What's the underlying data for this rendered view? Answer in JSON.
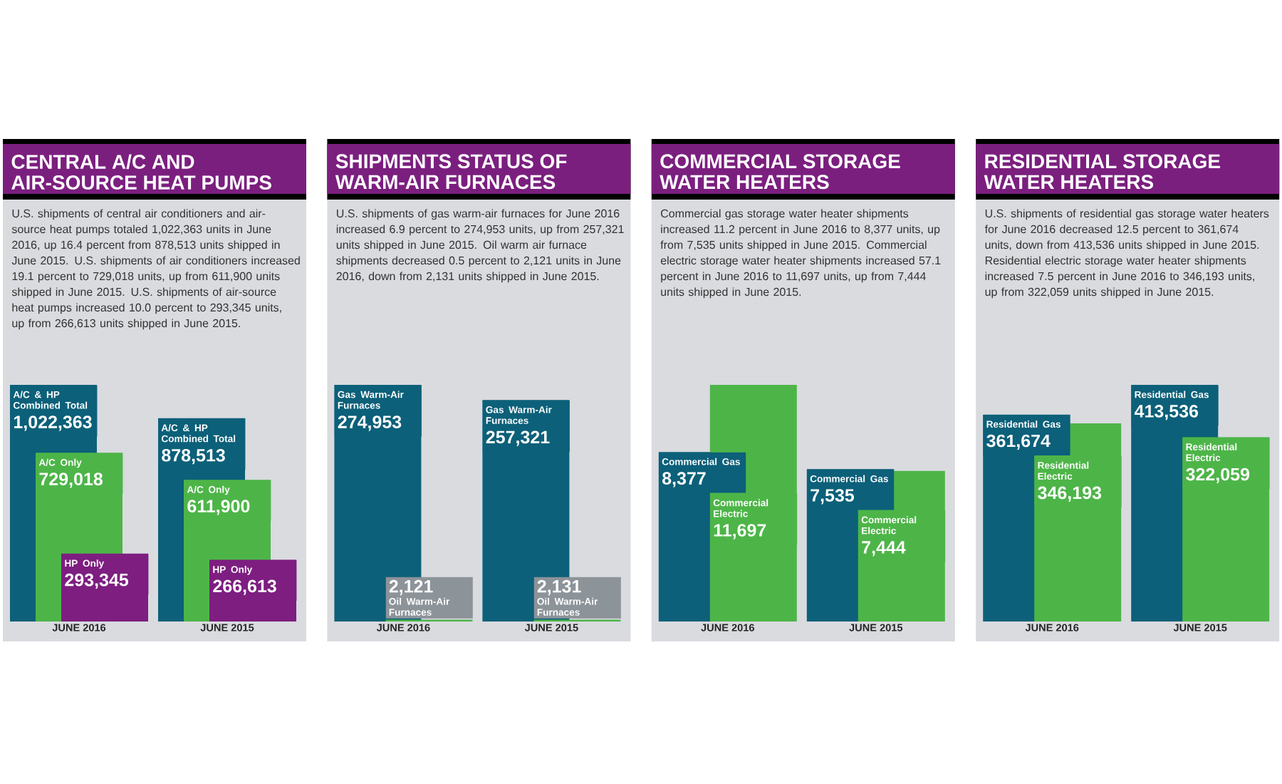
{
  "chart_data": [
    {
      "type": "bar",
      "title": "CENTRAL A/C AND AIR-SOURCE HEAT PUMPS",
      "subtitle": "U.S. shipments of central air conditioners and air-source heat pumps totaled 1,022,363 units in June 2016, up 16.4 percent from 878,513 units shipped in June 2015. U.S. shipments of air conditioners increased 19.1 percent to 729,018 units, up from 611,900 units shipped in June 2015. U.S. shipments of air-source heat pumps increased 10.0 percent to 293,345 units, up from 266,613 units shipped in June 2015.",
      "categories": [
        "JUNE 2016",
        "JUNE 2015"
      ],
      "series": [
        {
          "name": "A/C & HP Combined Total",
          "color": "#0c6079",
          "values": [
            1022363,
            878513
          ],
          "value_labels": [
            "1,022,363",
            "878,513"
          ]
        },
        {
          "name": "A/C Only",
          "color": "#4db548",
          "values": [
            729018,
            611900
          ],
          "value_labels": [
            "729,018",
            "611,900"
          ]
        },
        {
          "name": "HP Only",
          "color": "#7d1e80",
          "values": [
            293345,
            266613
          ],
          "value_labels": [
            "293,345",
            "266,613"
          ]
        }
      ]
    },
    {
      "type": "bar",
      "title": "SHIPMENTS STATUS OF WARM-AIR FURNACES",
      "subtitle": "U.S. shipments of gas warm-air furnaces for June 2016 increased 6.9 percent to 274,953 units, up from 257,321 units shipped in June 2015. Oil warm air furnace shipments decreased 0.5 percent to 2,121 units in June 2016, down from 2,131 units shipped in June 2015.",
      "categories": [
        "JUNE 2016",
        "JUNE 2015"
      ],
      "series": [
        {
          "name": "Gas Warm-Air Furnaces",
          "color": "#0c6079",
          "values": [
            274953,
            257321
          ],
          "value_labels": [
            "274,953",
            "257,321"
          ]
        },
        {
          "name": "Oil Warm-Air Furnaces",
          "color": "#4db548",
          "values": [
            2121,
            2131
          ],
          "value_labels": [
            "2,121",
            "2,131"
          ]
        }
      ]
    },
    {
      "type": "bar",
      "title": "COMMERCIAL STORAGE WATER HEATERS",
      "subtitle": "Commercial gas storage water heater shipments increased 11.2 percent in June 2016 to 8,377 units, up from 7,535 units shipped in June 2015. Commercial electric storage water heater shipments increased 57.1 percent in June 2016 to 11,697 units, up from 7,444 units shipped in June 2015.",
      "categories": [
        "JUNE 2016",
        "JUNE 2015"
      ],
      "series": [
        {
          "name": "Commercial Gas",
          "color": "#0c6079",
          "values": [
            8377,
            7535
          ],
          "value_labels": [
            "8,377",
            "7,535"
          ]
        },
        {
          "name": "Commercial Electric",
          "color": "#4db548",
          "values": [
            11697,
            7444
          ],
          "value_labels": [
            "11,697",
            "7,444"
          ]
        }
      ]
    },
    {
      "type": "bar",
      "title": "RESIDENTIAL STORAGE WATER HEATERS",
      "subtitle": "U.S. shipments of residential gas storage water heaters for June 2016 decreased 12.5 percent to 361,674 units, down from 413,536 units shipped in June 2015. Residential electric storage water heater shipments increased 7.5 percent in June 2016 to 346,193 units, up from 322,059 units shipped in June 2015.",
      "categories": [
        "JUNE 2016",
        "JUNE 2015"
      ],
      "series": [
        {
          "name": "Residential Gas",
          "color": "#0c6079",
          "values": [
            361674,
            413536
          ],
          "value_labels": [
            "361,674",
            "413,536"
          ]
        },
        {
          "name": "Residential Electric",
          "color": "#4db548",
          "values": [
            346193,
            322059
          ],
          "value_labels": [
            "346,193",
            "322,059"
          ]
        }
      ]
    }
  ]
}
